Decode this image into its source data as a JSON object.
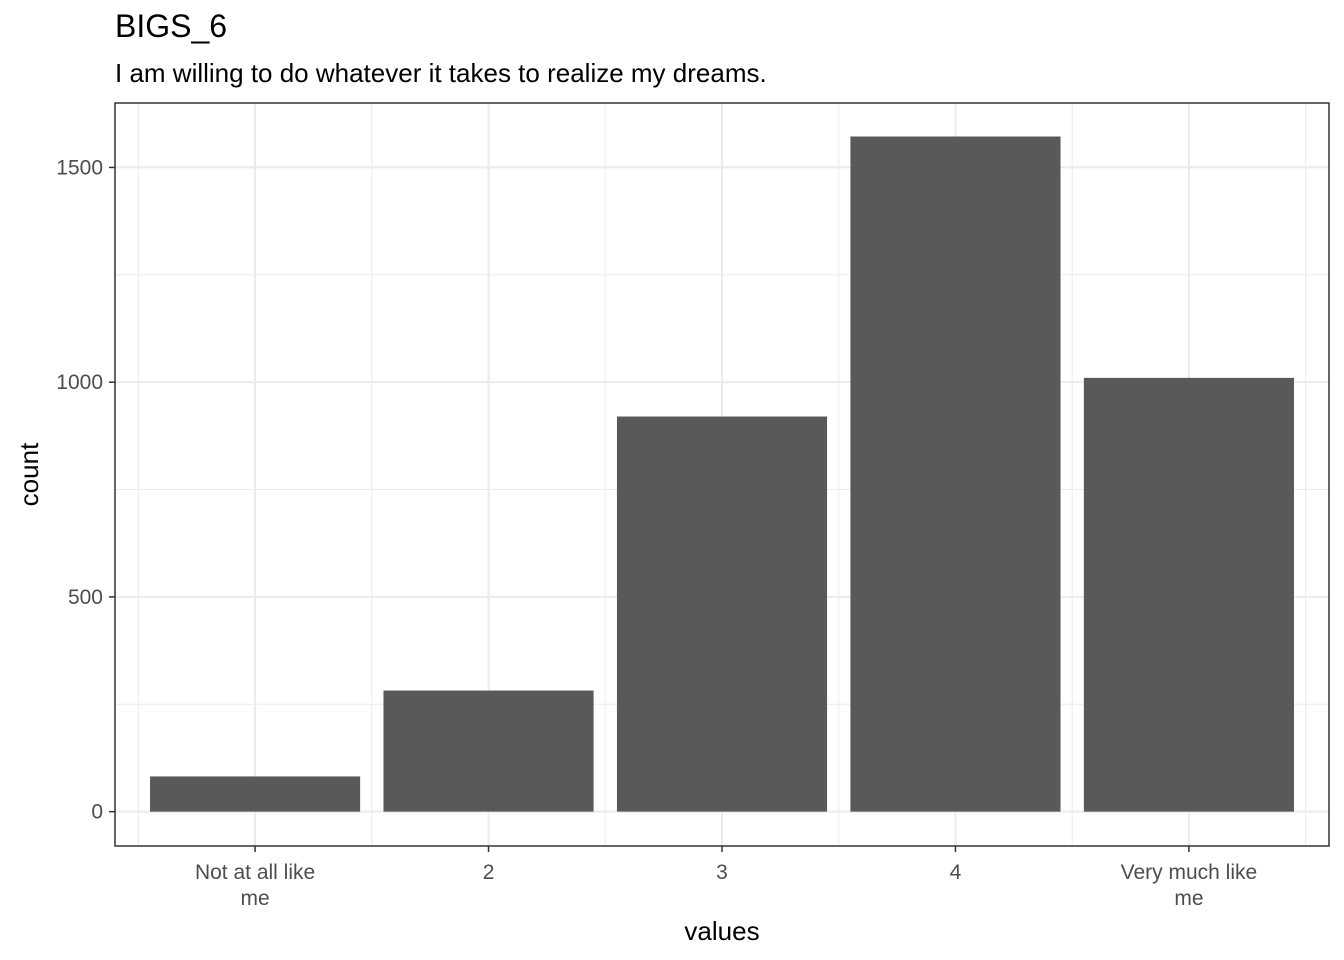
{
  "chart_data": {
    "type": "bar",
    "title": "BIGS_6",
    "subtitle": "I am willing to do whatever it takes to realize my dreams.",
    "xlabel": "values",
    "ylabel": "count",
    "categories": [
      "Not at all like me",
      "2",
      "3",
      "4",
      "Very much like me"
    ],
    "category_tick_lines": [
      [
        "Not at all like",
        "me"
      ],
      [
        "2"
      ],
      [
        "3"
      ],
      [
        "4"
      ],
      [
        "Very much like",
        "me"
      ]
    ],
    "values": [
      82,
      282,
      920,
      1572,
      1010
    ],
    "ylim": [
      -80,
      1650
    ],
    "yticks": [
      0,
      500,
      1000,
      1500
    ],
    "ytick_labels": [
      "0",
      "500",
      "1000",
      "1500"
    ],
    "grid": true,
    "bar_color": "#595959",
    "grid_color": "#ebebeb",
    "panel_border_color": "#333333"
  }
}
